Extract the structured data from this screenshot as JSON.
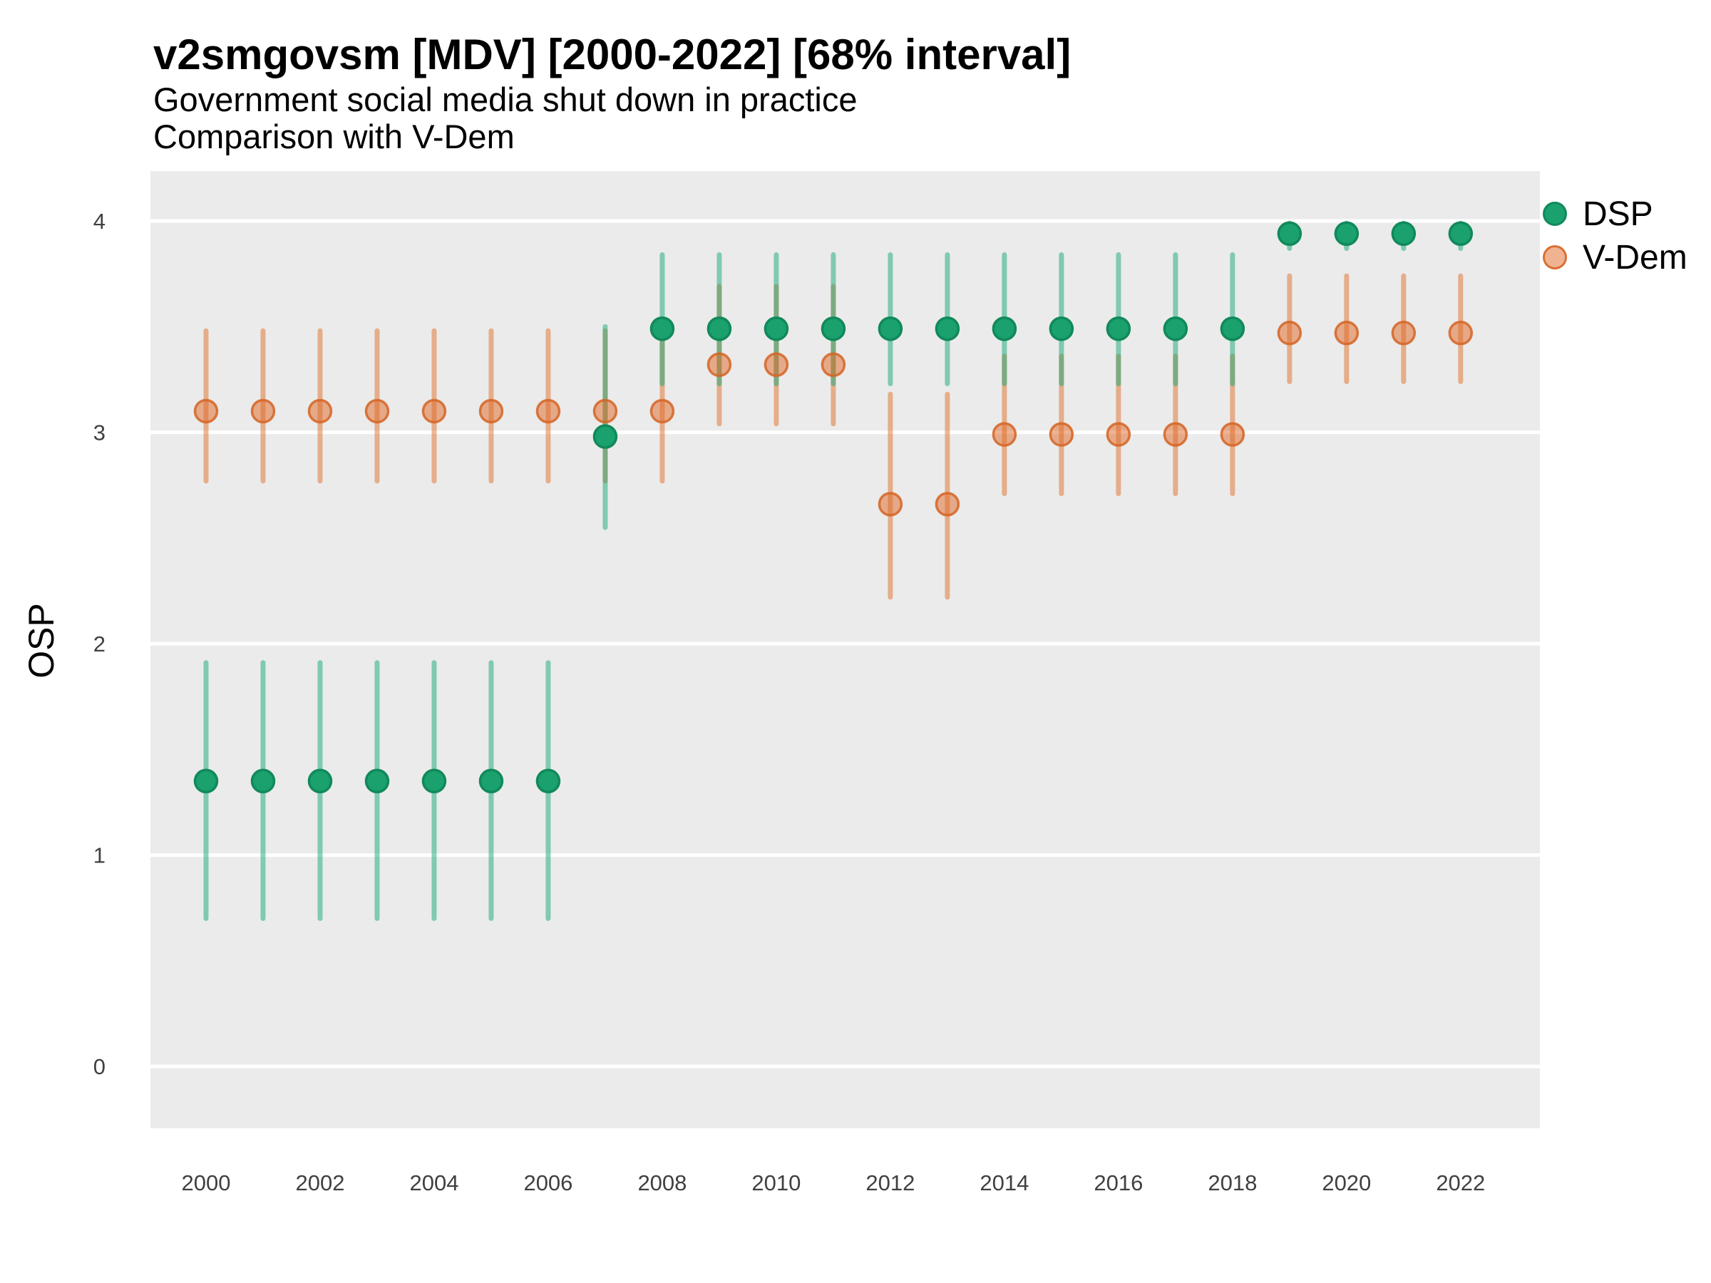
{
  "header": {
    "title": "v2smgovsm [MDV] [2000-2022] [68% interval]",
    "subtitle1": "Government social media shut down in practice",
    "subtitle2": "Comparison with V-Dem"
  },
  "chart_data": {
    "type": "pointrange",
    "title": "v2smgovsm [MDV] [2000-2022] [68% interval]",
    "subtitle": "Government social media shut down in practice",
    "subtitle2": "Comparison with V-Dem",
    "xlabel": "",
    "ylabel": "OSP",
    "interval": "68%",
    "grid": "horizontal-only",
    "legend_position": "right",
    "xlim": [
      1999.025,
      2023.39
    ],
    "ylim": [
      -0.293,
      4.236
    ],
    "yticks": [
      0,
      1,
      2,
      3,
      4
    ],
    "xticks": [
      2000,
      2002,
      2004,
      2006,
      2008,
      2010,
      2012,
      2014,
      2016,
      2018,
      2020,
      2022
    ],
    "years": [
      2000,
      2001,
      2002,
      2003,
      2004,
      2005,
      2006,
      2007,
      2008,
      2009,
      2010,
      2011,
      2012,
      2013,
      2014,
      2015,
      2016,
      2017,
      2018,
      2019,
      2020,
      2021,
      2022
    ],
    "colors": {
      "panel_bg": "#EBEBEB",
      "grid": "#FFFFFF",
      "tick_text": "#404040",
      "dsp_green": "#1AA16D",
      "vdem_orange": "#DF6726"
    },
    "series": [
      {
        "name": "DSP",
        "bar_color": "rgba(20,170,120,0.5)",
        "point_fill": "#1AA16D",
        "point_stroke": "#11895B",
        "est": [
          1.35,
          1.35,
          1.35,
          1.35,
          1.35,
          1.35,
          1.35,
          2.98,
          3.49,
          3.49,
          3.49,
          3.49,
          3.49,
          3.49,
          3.49,
          3.49,
          3.49,
          3.49,
          3.49,
          3.94,
          3.94,
          3.94,
          3.94
        ],
        "lo": [
          0.7,
          0.7,
          0.7,
          0.7,
          0.7,
          0.7,
          0.7,
          2.55,
          3.23,
          3.23,
          3.23,
          3.23,
          3.23,
          3.23,
          3.23,
          3.23,
          3.23,
          3.23,
          3.23,
          3.87,
          3.87,
          3.87,
          3.87
        ],
        "hi": [
          1.91,
          1.91,
          1.91,
          1.91,
          1.91,
          1.91,
          1.91,
          3.5,
          3.84,
          3.84,
          3.84,
          3.84,
          3.84,
          3.84,
          3.84,
          3.84,
          3.84,
          3.84,
          3.84,
          3.99,
          3.99,
          3.99,
          3.99
        ]
      },
      {
        "name": "V-Dem",
        "bar_color": "rgba(224,112,40,0.5)",
        "point_fill": "rgba(223,103,38,0.5)",
        "point_stroke": "rgba(213,100,35,0.85)",
        "est": [
          3.1,
          3.1,
          3.1,
          3.1,
          3.1,
          3.1,
          3.1,
          3.1,
          3.1,
          3.32,
          3.32,
          3.32,
          2.66,
          2.66,
          2.99,
          2.99,
          2.99,
          2.99,
          2.99,
          3.47,
          3.47,
          3.47,
          3.47
        ],
        "lo": [
          2.77,
          2.77,
          2.77,
          2.77,
          2.77,
          2.77,
          2.77,
          2.77,
          2.77,
          3.04,
          3.04,
          3.04,
          2.22,
          2.22,
          2.71,
          2.71,
          2.71,
          2.71,
          2.71,
          3.24,
          3.24,
          3.24,
          3.24
        ],
        "hi": [
          3.48,
          3.48,
          3.48,
          3.48,
          3.48,
          3.48,
          3.48,
          3.48,
          3.48,
          3.69,
          3.69,
          3.69,
          3.18,
          3.18,
          3.36,
          3.36,
          3.36,
          3.36,
          3.36,
          3.74,
          3.74,
          3.74,
          3.74
        ]
      }
    ]
  }
}
